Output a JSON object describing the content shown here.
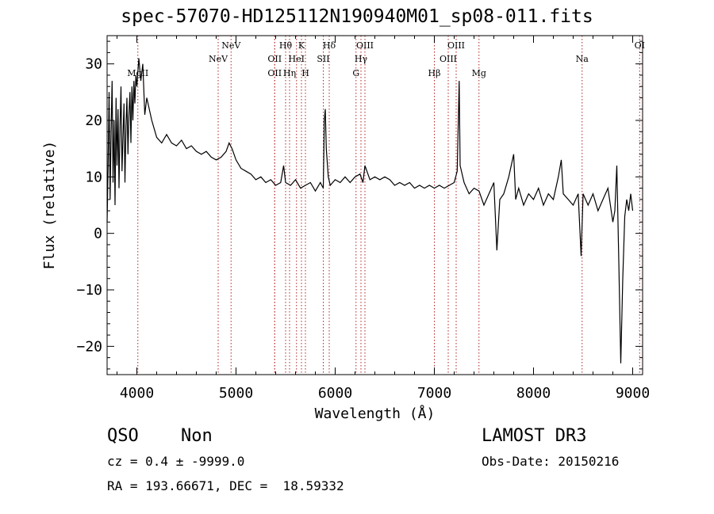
{
  "title": "spec-57070-HD125112N190940M01_sp08-011.fits",
  "info": {
    "class": "QSO",
    "subclass": "Non",
    "survey": "LAMOST DR3",
    "cz": "cz = 0.4 ± -9999.0",
    "obs_date": "Obs-Date: 20150216",
    "radec": "RA = 193.66671, DEC =  18.59332"
  },
  "colors": {
    "spectrum": "#000000",
    "lines": "#b22222",
    "frame": "#000000"
  },
  "chart_data": {
    "type": "line",
    "title": "spec-57070-HD125112N190940M01_sp08-011.fits",
    "xlabel": "Wavelength (Å)",
    "ylabel": "Flux (relative)",
    "xlim": [
      3700,
      9100
    ],
    "ylim": [
      -25,
      35
    ],
    "xticks": [
      4000,
      5000,
      6000,
      7000,
      8000,
      9000
    ],
    "yticks": [
      -20,
      -10,
      0,
      10,
      20,
      30
    ],
    "grid": false,
    "legend": "none",
    "series": [
      {
        "points": [
          [
            3700,
            2
          ],
          [
            3710,
            12
          ],
          [
            3720,
            25
          ],
          [
            3730,
            6
          ],
          [
            3740,
            18
          ],
          [
            3750,
            27
          ],
          [
            3760,
            9
          ],
          [
            3770,
            20
          ],
          [
            3780,
            5
          ],
          [
            3790,
            24
          ],
          [
            3800,
            12
          ],
          [
            3810,
            22
          ],
          [
            3820,
            8
          ],
          [
            3830,
            19
          ],
          [
            3840,
            26
          ],
          [
            3850,
            11
          ],
          [
            3860,
            17
          ],
          [
            3870,
            23
          ],
          [
            3880,
            9
          ],
          [
            3890,
            19
          ],
          [
            3900,
            24
          ],
          [
            3910,
            14
          ],
          [
            3920,
            21
          ],
          [
            3930,
            25
          ],
          [
            3940,
            16
          ],
          [
            3950,
            26
          ],
          [
            3960,
            20
          ],
          [
            3970,
            27
          ],
          [
            3980,
            23
          ],
          [
            3990,
            28
          ],
          [
            4000,
            26
          ],
          [
            4020,
            31
          ],
          [
            4040,
            27
          ],
          [
            4060,
            30
          ],
          [
            4080,
            21
          ],
          [
            4100,
            24
          ],
          [
            4150,
            20
          ],
          [
            4200,
            17
          ],
          [
            4250,
            16
          ],
          [
            4300,
            17.5
          ],
          [
            4350,
            16
          ],
          [
            4400,
            15.5
          ],
          [
            4450,
            16.5
          ],
          [
            4500,
            15
          ],
          [
            4550,
            15.5
          ],
          [
            4600,
            14.5
          ],
          [
            4650,
            14
          ],
          [
            4700,
            14.5
          ],
          [
            4750,
            13.5
          ],
          [
            4800,
            13
          ],
          [
            4850,
            13.5
          ],
          [
            4900,
            14.5
          ],
          [
            4930,
            16
          ],
          [
            4960,
            15
          ],
          [
            5000,
            13
          ],
          [
            5050,
            11.5
          ],
          [
            5100,
            11
          ],
          [
            5150,
            10.5
          ],
          [
            5200,
            9.5
          ],
          [
            5250,
            10
          ],
          [
            5300,
            9
          ],
          [
            5350,
            9.5
          ],
          [
            5400,
            8.5
          ],
          [
            5450,
            9
          ],
          [
            5480,
            12
          ],
          [
            5500,
            9
          ],
          [
            5550,
            8.5
          ],
          [
            5600,
            9.5
          ],
          [
            5650,
            8
          ],
          [
            5700,
            8.5
          ],
          [
            5750,
            9
          ],
          [
            5800,
            7.5
          ],
          [
            5850,
            9
          ],
          [
            5880,
            8
          ],
          [
            5890,
            20
          ],
          [
            5900,
            22
          ],
          [
            5910,
            15
          ],
          [
            5930,
            10
          ],
          [
            5950,
            8.5
          ],
          [
            6000,
            9.5
          ],
          [
            6050,
            9
          ],
          [
            6100,
            10
          ],
          [
            6150,
            9
          ],
          [
            6200,
            10
          ],
          [
            6250,
            10.5
          ],
          [
            6280,
            9
          ],
          [
            6300,
            12
          ],
          [
            6350,
            9.5
          ],
          [
            6400,
            10
          ],
          [
            6450,
            9.5
          ],
          [
            6500,
            10
          ],
          [
            6550,
            9.5
          ],
          [
            6600,
            8.5
          ],
          [
            6650,
            9
          ],
          [
            6700,
            8.5
          ],
          [
            6750,
            9
          ],
          [
            6800,
            8
          ],
          [
            6850,
            8.5
          ],
          [
            6900,
            8
          ],
          [
            6950,
            8.5
          ],
          [
            7000,
            8
          ],
          [
            7050,
            8.5
          ],
          [
            7100,
            8
          ],
          [
            7150,
            8.5
          ],
          [
            7200,
            9
          ],
          [
            7230,
            11
          ],
          [
            7250,
            27
          ],
          [
            7260,
            12
          ],
          [
            7300,
            9
          ],
          [
            7350,
            7
          ],
          [
            7400,
            8
          ],
          [
            7450,
            7.5
          ],
          [
            7500,
            5
          ],
          [
            7550,
            7
          ],
          [
            7600,
            9
          ],
          [
            7630,
            -3
          ],
          [
            7660,
            6
          ],
          [
            7700,
            7
          ],
          [
            7750,
            10
          ],
          [
            7800,
            14
          ],
          [
            7820,
            6
          ],
          [
            7850,
            8
          ],
          [
            7900,
            5
          ],
          [
            7950,
            7
          ],
          [
            8000,
            6
          ],
          [
            8050,
            8
          ],
          [
            8100,
            5
          ],
          [
            8150,
            7
          ],
          [
            8200,
            6
          ],
          [
            8250,
            10
          ],
          [
            8280,
            13
          ],
          [
            8300,
            7
          ],
          [
            8350,
            6
          ],
          [
            8400,
            5
          ],
          [
            8450,
            7
          ],
          [
            8480,
            -4
          ],
          [
            8500,
            7
          ],
          [
            8550,
            5
          ],
          [
            8600,
            7
          ],
          [
            8650,
            4
          ],
          [
            8700,
            6
          ],
          [
            8750,
            8
          ],
          [
            8800,
            2
          ],
          [
            8820,
            4
          ],
          [
            8840,
            12
          ],
          [
            8860,
            -5
          ],
          [
            8880,
            -23
          ],
          [
            8900,
            -8
          ],
          [
            8920,
            3
          ],
          [
            8940,
            6
          ],
          [
            8960,
            4
          ],
          [
            8980,
            7
          ],
          [
            9000,
            4
          ]
        ]
      }
    ],
    "lines": [
      {
        "label": "MgII",
        "x": 4010,
        "row": 3
      },
      {
        "label": "NeV",
        "x": 4820,
        "row": 2
      },
      {
        "label": "NeV",
        "x": 4950,
        "row": 1
      },
      {
        "label": "OII",
        "x": 5390,
        "row": 3
      },
      {
        "label": "OII",
        "x": 5390,
        "row": 2
      },
      {
        "label": "Hθ",
        "x": 5500,
        "row": 1
      },
      {
        "label": "Hη",
        "x": 5540,
        "row": 3
      },
      {
        "label": "HeI",
        "x": 5610,
        "row": 2
      },
      {
        "label": "K",
        "x": 5660,
        "row": 1
      },
      {
        "label": "H",
        "x": 5700,
        "row": 3
      },
      {
        "label": "SII",
        "x": 5880,
        "row": 2
      },
      {
        "label": "Hδ",
        "x": 5940,
        "row": 1
      },
      {
        "label": "G",
        "x": 6210,
        "row": 3
      },
      {
        "label": "Hγ",
        "x": 6260,
        "row": 2
      },
      {
        "label": "OIII",
        "x": 6300,
        "row": 1
      },
      {
        "label": "Hβ",
        "x": 7000,
        "row": 3
      },
      {
        "label": "OIII",
        "x": 7140,
        "row": 2
      },
      {
        "label": "OIII",
        "x": 7220,
        "row": 1
      },
      {
        "label": "Mg",
        "x": 7450,
        "row": 3
      },
      {
        "label": "Na",
        "x": 8490,
        "row": 2
      },
      {
        "label": "OI",
        "x": 9070,
        "row": 1
      }
    ]
  }
}
